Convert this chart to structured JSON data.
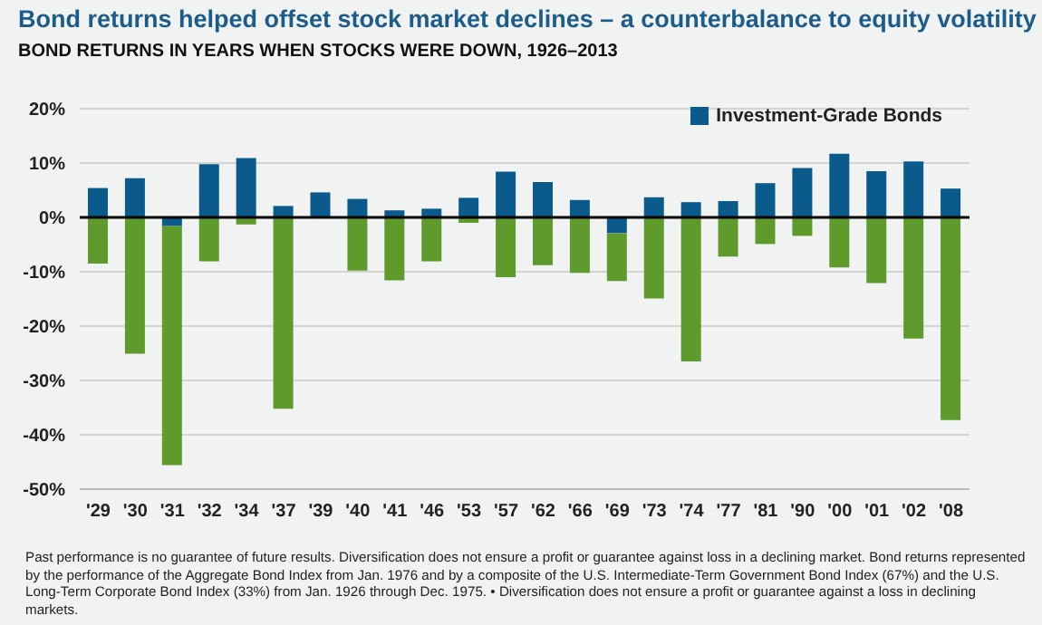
{
  "chart_data": {
    "type": "bar",
    "title": "Bond returns helped offset stock market declines – a counterbalance to equity volatility",
    "subtitle": "BOND RETURNS IN YEARS WHEN STOCKS WERE DOWN, 1926–2013",
    "categories": [
      "'29",
      "'30",
      "'31",
      "'32",
      "'34",
      "'37",
      "'39",
      "'40",
      "'41",
      "'46",
      "'53",
      "'57",
      "'62",
      "'66",
      "'69",
      "'73",
      "'74",
      "'77",
      "'81",
      "'90",
      "'00",
      "'01",
      "'02",
      "'08"
    ],
    "stacked": true,
    "series": [
      {
        "name": "Investment-Grade Bonds",
        "color": "#0b5a8c",
        "values": [
          5.4,
          7.2,
          -1.6,
          9.8,
          10.9,
          2.1,
          4.6,
          3.4,
          1.3,
          1.6,
          3.6,
          8.4,
          6.5,
          3.2,
          -2.9,
          3.7,
          2.8,
          3.0,
          6.3,
          9.1,
          11.7,
          8.5,
          10.3,
          5.3
        ]
      },
      {
        "color": "#5e9a2c",
        "values": [
          -8.5,
          -25.1,
          -44.0,
          -8.1,
          -1.3,
          -35.2,
          null,
          -9.8,
          -11.6,
          -8.1,
          -1.0,
          -11.0,
          -8.8,
          -10.2,
          -8.8,
          -14.9,
          -26.5,
          -7.2,
          -4.9,
          -3.4,
          -9.2,
          -12.1,
          -22.3,
          -37.3
        ]
      }
    ],
    "ylim": [
      -50,
      20
    ],
    "yticks": [
      {
        "value": -50,
        "label": "-50%"
      },
      {
        "value": -40,
        "label": "-40%"
      },
      {
        "value": -30,
        "label": "-30%"
      },
      {
        "value": -20,
        "label": "-20%"
      },
      {
        "value": -10,
        "label": "-10%"
      },
      {
        "value": 0,
        "label": "0%"
      },
      {
        "value": 10,
        "label": "10%"
      },
      {
        "value": 20,
        "label": "20%"
      }
    ],
    "grid": "y",
    "legend": "top right",
    "ref_lines": [
      {
        "axis": "y",
        "value": 0,
        "color": "#000000"
      }
    ],
    "annotations": [
      "Past performance is no guarantee of future results. Diversification does not ensure a profit or guarantee against loss in a declining market. Bond returns represented by the performance of the Aggregate Bond Index from Jan. 1976 and by a composite of the U.S. Intermediate-Term Government Bond Index (67%) and the U.S. Long-Term Corporate Bond Index (33%) from Jan. 1926 through Dec. 1975.",
      "• Diversification does not ensure a profit or guarantee against a loss in declining markets."
    ]
  }
}
